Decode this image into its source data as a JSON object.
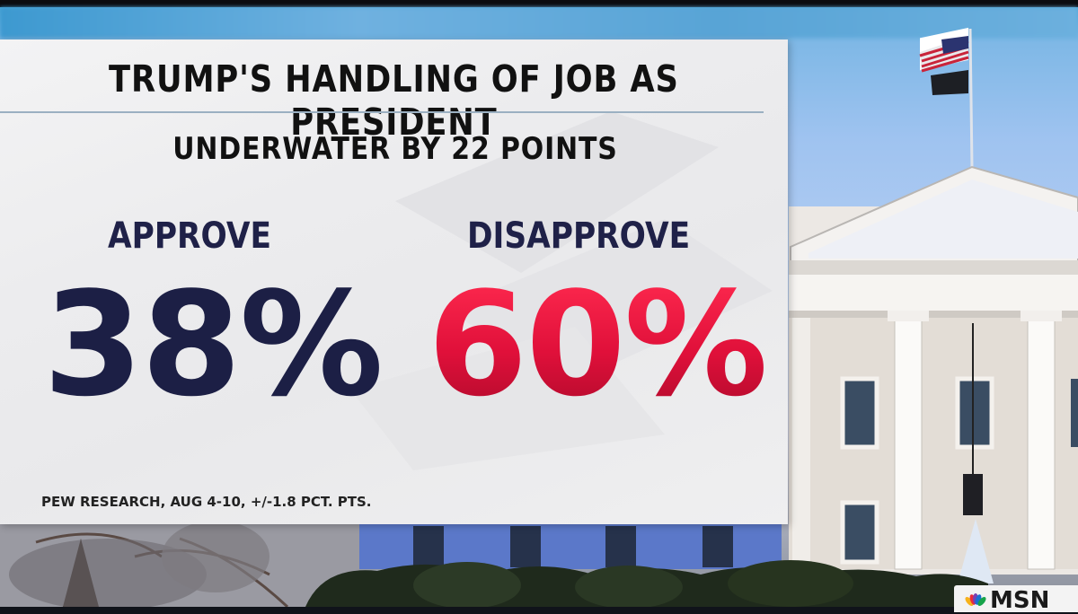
{
  "graphic": {
    "title": "TRUMP'S HANDLING OF JOB AS PRESIDENT",
    "subtitle": "UNDERWATER BY 22 POINTS",
    "approve": {
      "label": "APPROVE",
      "value": "38%"
    },
    "disapprove": {
      "label": "DISAPPROVE",
      "value": "60%"
    },
    "source": "PEW RESEARCH, AUG 4-10, +/-1.8 PCT. PTS."
  },
  "network": {
    "logo_text": "MSN"
  },
  "colors": {
    "approve": "#1c1f45",
    "disapprove": "#e0103a",
    "panel": "#ededee"
  },
  "icons": [
    "white-house-image",
    "peacock-icon"
  ]
}
